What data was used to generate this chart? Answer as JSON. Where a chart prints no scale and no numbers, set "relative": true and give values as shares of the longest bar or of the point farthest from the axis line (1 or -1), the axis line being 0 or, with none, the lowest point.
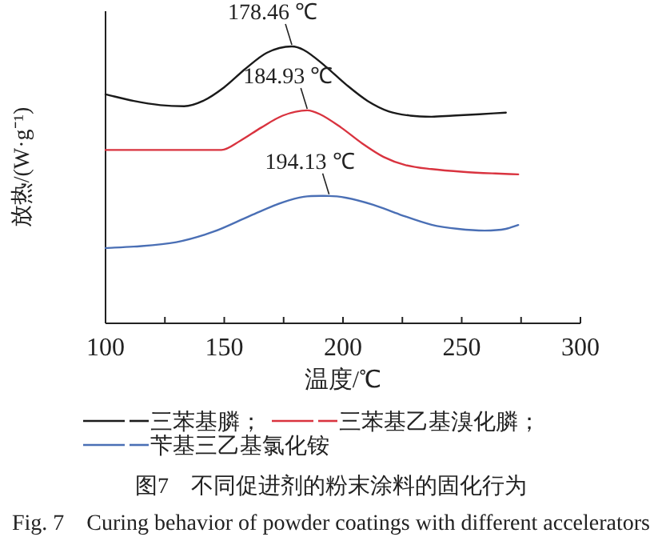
{
  "chart_data": {
    "type": "line",
    "relative": true,
    "title": "图7　不同促进剂的粉末涂料的固化行为",
    "subtitle": "Fig. 7　Curing behavior of powder coatings with different accelerators",
    "xlabel": "温度/℃",
    "ylabel": "放热/(W·g⁻¹)",
    "xlim": [
      100,
      300
    ],
    "xticks": [
      100,
      {
        "value": 125,
        "label": null
      },
      150,
      {
        "value": 175,
        "label": null
      },
      200,
      {
        "value": 225,
        "label": null
      },
      250,
      {
        "value": 275,
        "label": null
      },
      300
    ],
    "legend": "bottom",
    "grid": false,
    "series": [
      {
        "name": "三苯基膦；",
        "color": "#1a1a1a",
        "x": [
          100,
          111.9,
          123.1,
          133.1,
          141.0,
          149.9,
          158.9,
          167.9,
          178.46,
          183.5,
          192.5,
          201.5,
          210.4,
          219.4,
          228.3,
          237.3,
          246.2,
          257.5,
          268.6
        ],
        "values": [
          0.827,
          0.803,
          0.788,
          0.784,
          0.803,
          0.852,
          0.919,
          0.977,
          1.0,
          0.987,
          0.929,
          0.861,
          0.803,
          0.765,
          0.75,
          0.746,
          0.75,
          0.755,
          0.761
        ]
      },
      {
        "name": "三苯基乙基溴化膦；",
        "color": "#d9333f",
        "x": [
          100,
          123.1,
          148.8,
          156.7,
          165.6,
          174.6,
          184.93,
          190.3,
          199.2,
          208.2,
          217.1,
          226.1,
          237.3,
          250.7,
          264.2,
          273.8
        ],
        "values": [
          0.626,
          0.626,
          0.626,
          0.659,
          0.707,
          0.75,
          0.769,
          0.755,
          0.707,
          0.649,
          0.601,
          0.572,
          0.557,
          0.547,
          0.541,
          0.538
        ]
      },
      {
        "name": "苄基三乙基氯化铵",
        "color": "#4a6fb5",
        "x": [
          100,
          111.9,
          129.8,
          145.5,
          161.1,
          174.6,
          183.5,
          194.13,
          201.5,
          212.7,
          223.9,
          237.3,
          248.5,
          259.7,
          268.6,
          273.8
        ],
        "values": [
          0.272,
          0.277,
          0.293,
          0.331,
          0.389,
          0.437,
          0.457,
          0.46,
          0.453,
          0.428,
          0.393,
          0.356,
          0.341,
          0.335,
          0.341,
          0.355
        ]
      }
    ],
    "annotations": [
      {
        "text": "178.46 ℃",
        "x": 178.46,
        "y": 1.0
      },
      {
        "text": "184.93 ℃",
        "x": 184.93,
        "y": 0.769
      },
      {
        "text": "194.13 ℃",
        "x": 194.13,
        "y": 0.46
      }
    ]
  }
}
